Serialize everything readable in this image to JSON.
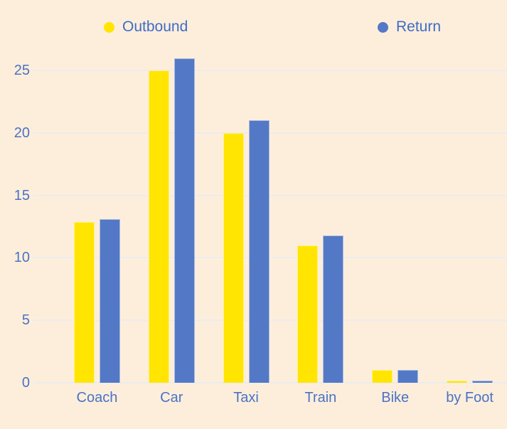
{
  "chart_data": {
    "type": "bar",
    "title": "",
    "xlabel": "",
    "ylabel": "",
    "categories": [
      "Coach",
      "Car",
      "Taxi",
      "Train",
      "Bike",
      "by Foot"
    ],
    "series": [
      {
        "name": "Outbound",
        "color": "#FFE501",
        "values": [
          12.9,
          25,
          20,
          11,
          1,
          0.2
        ]
      },
      {
        "name": "Return",
        "color": "#5378C5",
        "values": [
          13.1,
          26,
          21,
          11.8,
          1,
          0.15
        ]
      }
    ],
    "y_ticks": [
      0,
      5,
      10,
      15,
      20,
      25
    ],
    "ylim": [
      0,
      27
    ],
    "grid": true,
    "legend_position": "top"
  },
  "legend": {
    "items": [
      {
        "label": "Outbound",
        "color": "#FFE501"
      },
      {
        "label": "Return",
        "color": "#5378C5"
      }
    ]
  },
  "colors": {
    "background": "#FDEEDB",
    "outbound_bar": "#FFE501",
    "return_bar": "#5378C5",
    "axis_text": "#4A72C6",
    "legend_text": "#3E6CC7",
    "gridline": "#EBECEE"
  }
}
